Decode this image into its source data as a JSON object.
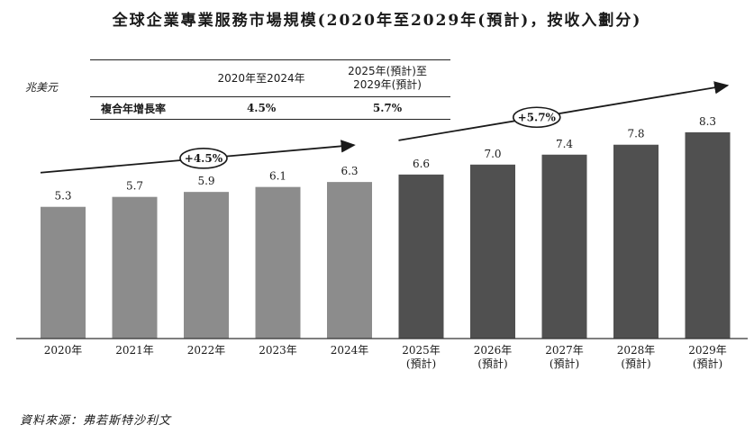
{
  "title": "全球企業專業服務市場規模(2020年至2029年(預計)，按收入劃分)",
  "unit_label": "兆美元",
  "source": "資料來源：弗若斯特沙利文",
  "cagr_table": {
    "col1_header": "2020年至2024年",
    "col2_header": "2025年(預計)至2029年(預計)",
    "row_label": "複合年增長率",
    "col1_value": "4.5%",
    "col2_value": "5.7%"
  },
  "chart_data": {
    "type": "bar",
    "title": "全球企業專業服務市場規模(2020年至2029年(預計)，按收入劃分)",
    "ylabel": "兆美元",
    "xlabel": "",
    "ylim": [
      0,
      8.6
    ],
    "categories": [
      "2020年",
      "2021年",
      "2022年",
      "2023年",
      "2024年",
      "2025年",
      "2026年",
      "2027年",
      "2028年",
      "2029年"
    ],
    "category_sublabels": [
      "",
      "",
      "",
      "",
      "",
      "(預計)",
      "(預計)",
      "(預計)",
      "(預計)",
      "(預計)"
    ],
    "values": [
      5.3,
      5.7,
      5.9,
      6.1,
      6.3,
      6.6,
      7.0,
      7.4,
      7.8,
      8.3
    ],
    "value_labels": [
      "5.3",
      "5.7",
      "5.9",
      "6.1",
      "6.3",
      "6.6",
      "7.0",
      "7.4",
      "7.8",
      "8.3"
    ],
    "forecast_start_index": 5,
    "colors": {
      "historical": "#8c8c8c",
      "forecast": "#505050",
      "axis": "#333333"
    },
    "growth_annotations": [
      {
        "label": "+4.5%",
        "from_index": 0,
        "to_index": 4
      },
      {
        "label": "+5.7%",
        "from_index": 5,
        "to_index": 9
      }
    ]
  }
}
